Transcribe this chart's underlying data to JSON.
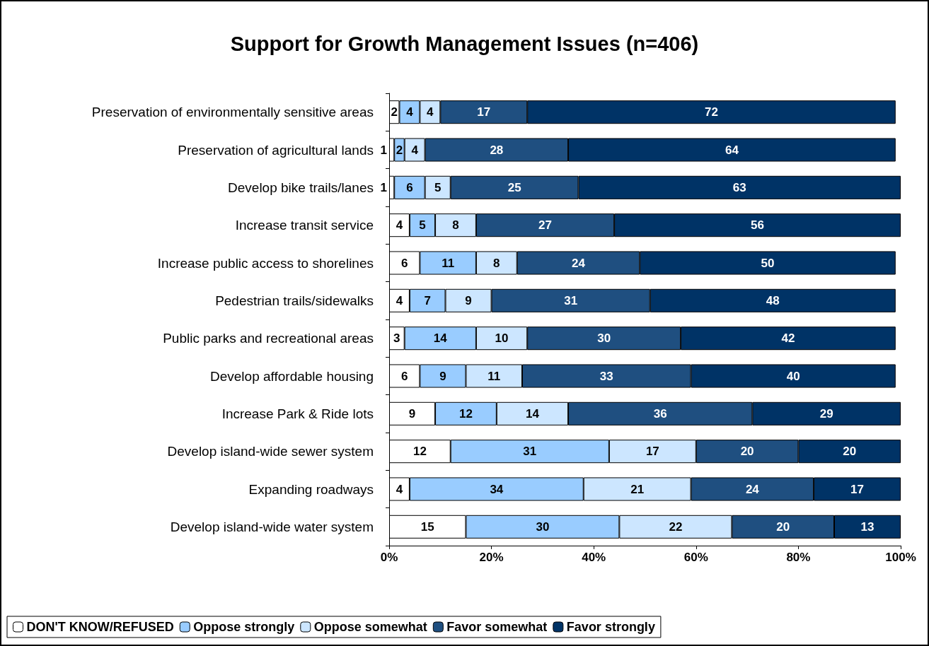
{
  "chart_data": {
    "type": "bar",
    "title": "Support for Growth Management Issues (n=406)",
    "orientation": "horizontal",
    "stacked": true,
    "data_labels": true,
    "legend": "bottom",
    "grid": false,
    "categories": [
      "Preservation of environmentally sensitive areas",
      "Preservation of agricultural lands",
      "Develop bike trails/lanes",
      "Increase transit service",
      "Increase public access to shorelines",
      "Pedestrian trails/sidewalks",
      "Public parks and recreational areas",
      "Develop affordable housing",
      "Increase Park & Ride lots",
      "Develop island-wide sewer system",
      "Expanding roadways",
      "Develop island-wide water system"
    ],
    "xlim": [
      0,
      100
    ],
    "xticks": [
      {
        "value": 0,
        "label": "0%"
      },
      {
        "value": 20,
        "label": "20%"
      },
      {
        "value": 40,
        "label": "40%"
      },
      {
        "value": 60,
        "label": "60%"
      },
      {
        "value": 80,
        "label": "80%"
      },
      {
        "value": 100,
        "label": "100%"
      }
    ],
    "series": [
      {
        "name": "DON'T KNOW/REFUSED",
        "color": "#ffffff",
        "values": [
          2,
          1,
          1,
          4,
          6,
          4,
          3,
          6,
          9,
          12,
          4,
          15
        ]
      },
      {
        "name": "Oppose strongly",
        "color": "#99ccff",
        "values": [
          4,
          2,
          6,
          5,
          11,
          7,
          14,
          9,
          12,
          31,
          34,
          30
        ]
      },
      {
        "name": "Oppose somewhat",
        "color": "#cce6ff",
        "values": [
          4,
          4,
          5,
          8,
          8,
          9,
          10,
          11,
          14,
          17,
          21,
          22
        ]
      },
      {
        "name": "Favor somewhat",
        "color": "#1f4f80",
        "values": [
          17,
          28,
          25,
          27,
          24,
          31,
          30,
          33,
          36,
          20,
          24,
          20
        ]
      },
      {
        "name": "Favor strongly",
        "color": "#003366",
        "values": [
          72,
          64,
          63,
          56,
          50,
          48,
          42,
          40,
          29,
          20,
          17,
          13
        ]
      }
    ]
  }
}
